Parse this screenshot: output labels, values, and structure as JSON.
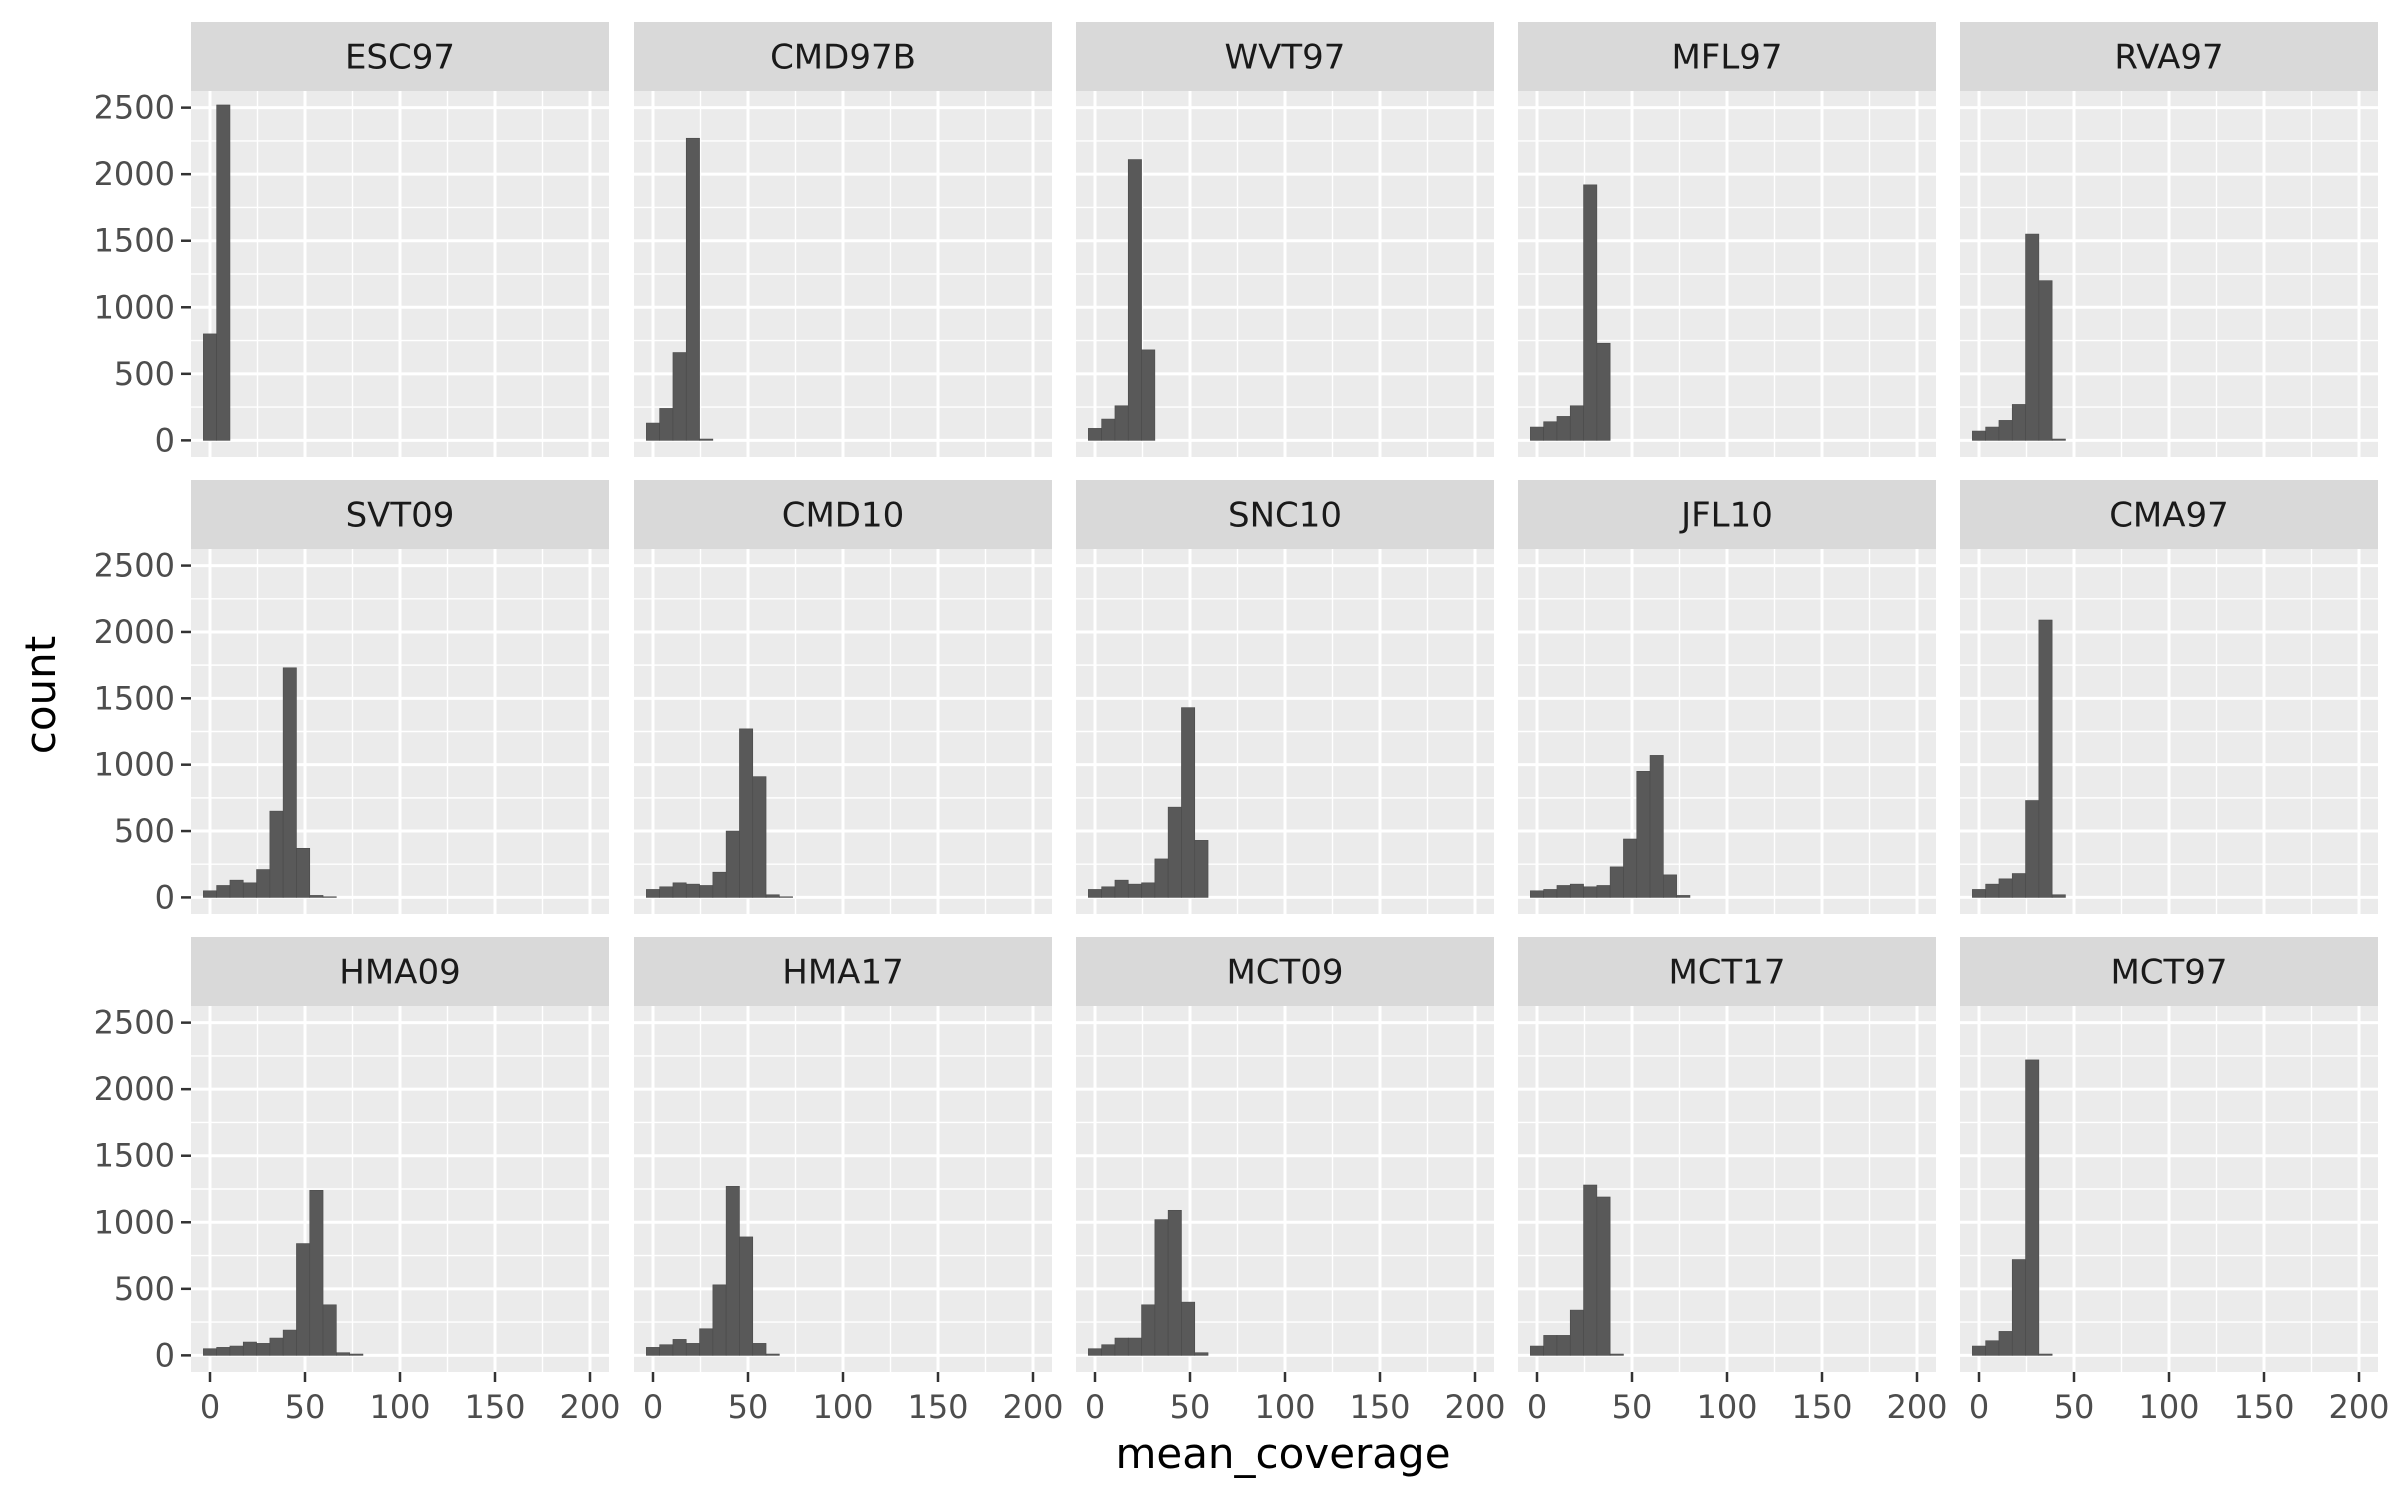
{
  "chart_data": {
    "type": "bar",
    "subtype": "faceted histogram",
    "xlabel": "mean_coverage",
    "ylabel": "count",
    "xlim": [
      -10,
      210
    ],
    "ylim": [
      -125,
      2625
    ],
    "x_ticks": [
      0,
      50,
      100,
      150,
      200
    ],
    "y_ticks": [
      0,
      500,
      1000,
      1500,
      2000,
      2500
    ],
    "bin_width": 7,
    "bin_start": -3.5,
    "grid": true,
    "legend": "none",
    "bar_color": "#595959",
    "panel_background": "#ebebeb",
    "strip_background": "#d9d9d9",
    "layout": {
      "rows": 3,
      "cols": 5
    },
    "facets": [
      {
        "name": "ESC97",
        "counts": [
          800,
          2520
        ]
      },
      {
        "name": "CMD97B",
        "counts": [
          130,
          240,
          660,
          2270,
          10
        ]
      },
      {
        "name": "WVT97",
        "counts": [
          90,
          160,
          260,
          2110,
          680
        ]
      },
      {
        "name": "MFL97",
        "counts": [
          100,
          140,
          180,
          260,
          1920,
          730
        ]
      },
      {
        "name": "RVA97",
        "counts": [
          70,
          100,
          150,
          270,
          1550,
          1200,
          10
        ]
      },
      {
        "name": "SVT09",
        "counts": [
          50,
          90,
          130,
          110,
          210,
          650,
          1730,
          370,
          15,
          5
        ]
      },
      {
        "name": "CMD10",
        "counts": [
          60,
          80,
          110,
          100,
          90,
          190,
          500,
          1270,
          910,
          20,
          5
        ]
      },
      {
        "name": "SNC10",
        "counts": [
          60,
          80,
          130,
          100,
          110,
          290,
          680,
          1430,
          430
        ]
      },
      {
        "name": "JFL10",
        "counts": [
          50,
          60,
          90,
          100,
          80,
          90,
          230,
          440,
          950,
          1070,
          170,
          15
        ]
      },
      {
        "name": "CMA97",
        "counts": [
          60,
          100,
          140,
          180,
          730,
          2090,
          20
        ]
      },
      {
        "name": "HMA09",
        "counts": [
          50,
          60,
          70,
          100,
          90,
          130,
          190,
          840,
          1240,
          380,
          20,
          10
        ]
      },
      {
        "name": "HMA17",
        "counts": [
          60,
          80,
          120,
          90,
          200,
          530,
          1270,
          890,
          90,
          10
        ]
      },
      {
        "name": "MCT09",
        "counts": [
          50,
          80,
          130,
          130,
          380,
          1020,
          1090,
          400,
          20
        ]
      },
      {
        "name": "MCT17",
        "counts": [
          70,
          150,
          150,
          340,
          1280,
          1190,
          10
        ]
      },
      {
        "name": "MCT97",
        "counts": [
          70,
          110,
          180,
          720,
          2220,
          10
        ]
      }
    ]
  }
}
